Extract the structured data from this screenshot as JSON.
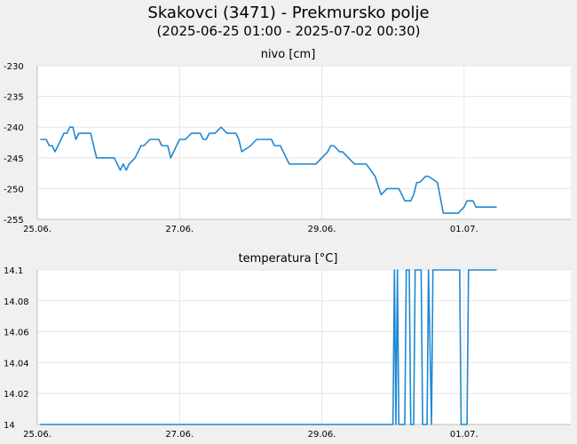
{
  "header": {
    "title": "Skakovci (3471) - Prekmursko polje",
    "subtitle": "(2025-06-25 01:00 - 2025-07-02 00:30)"
  },
  "chart_data": [
    {
      "type": "line",
      "title": "nivo [cm]",
      "ylim": [
        -255,
        -230
      ],
      "yticks": [
        -230,
        -235,
        -240,
        -245,
        -250,
        -255
      ],
      "xlim": [
        "2025-06-25 00:00",
        "2025-07-02 12:00"
      ],
      "xticks": [
        {
          "label": "25.06.",
          "at": "2025-06-25 00:00"
        },
        {
          "label": "27.06.",
          "at": "2025-06-27 00:00"
        },
        {
          "label": "29.06.",
          "at": "2025-06-29 00:00"
        },
        {
          "label": "01.07.",
          "at": "2025-07-01 00:00"
        }
      ],
      "grid": true,
      "color": "#1e88d4",
      "series": [
        {
          "x": [
            "2025-06-25 01:00",
            "2025-06-25 03:00",
            "2025-06-25 04:00",
            "2025-06-25 05:00",
            "2025-06-25 06:00",
            "2025-06-25 07:00",
            "2025-06-25 09:00",
            "2025-06-25 10:00",
            "2025-06-25 11:00",
            "2025-06-25 12:00",
            "2025-06-25 13:00",
            "2025-06-25 14:00",
            "2025-06-25 15:00",
            "2025-06-25 17:00",
            "2025-06-25 18:00",
            "2025-06-25 20:00",
            "2025-06-25 21:00",
            "2025-06-26 00:00",
            "2025-06-26 02:00",
            "2025-06-26 03:00",
            "2025-06-26 04:00",
            "2025-06-26 05:00",
            "2025-06-26 06:00",
            "2025-06-26 07:00",
            "2025-06-26 09:00",
            "2025-06-26 11:00",
            "2025-06-26 12:00",
            "2025-06-26 14:00",
            "2025-06-26 15:00",
            "2025-06-26 17:00",
            "2025-06-26 18:00",
            "2025-06-26 19:00",
            "2025-06-26 20:00",
            "2025-06-26 21:00",
            "2025-06-27 00:00",
            "2025-06-27 02:00",
            "2025-06-27 04:00",
            "2025-06-27 05:00",
            "2025-06-27 06:00",
            "2025-06-27 07:00",
            "2025-06-27 08:00",
            "2025-06-27 09:00",
            "2025-06-27 10:00",
            "2025-06-27 12:00",
            "2025-06-27 14:00",
            "2025-06-27 16:00",
            "2025-06-27 19:00",
            "2025-06-27 20:00",
            "2025-06-27 21:00",
            "2025-06-28 00:00",
            "2025-06-28 02:00",
            "2025-06-28 04:00",
            "2025-06-28 06:00",
            "2025-06-28 07:00",
            "2025-06-28 08:00",
            "2025-06-28 09:00",
            "2025-06-28 10:00",
            "2025-06-28 12:00",
            "2025-06-28 13:00",
            "2025-06-28 16:00",
            "2025-06-28 18:00",
            "2025-06-28 19:00",
            "2025-06-28 22:00",
            "2025-06-29 00:00",
            "2025-06-29 02:00",
            "2025-06-29 03:00",
            "2025-06-29 04:00",
            "2025-06-29 06:00",
            "2025-06-29 07:00",
            "2025-06-29 09:00",
            "2025-06-29 11:00",
            "2025-06-29 13:00",
            "2025-06-29 15:00",
            "2025-06-29 18:00",
            "2025-06-29 20:00",
            "2025-06-29 22:00",
            "2025-06-30 00:00",
            "2025-06-30 02:00",
            "2025-06-30 04:00",
            "2025-06-30 06:00",
            "2025-06-30 07:00",
            "2025-06-30 08:00",
            "2025-06-30 09:00",
            "2025-06-30 11:00",
            "2025-06-30 12:00",
            "2025-06-30 15:00",
            "2025-06-30 17:00",
            "2025-06-30 20:00",
            "2025-06-30 22:00",
            "2025-07-01 00:00",
            "2025-07-01 01:00",
            "2025-07-01 03:00",
            "2025-07-01 04:00",
            "2025-07-01 06:00",
            "2025-07-01 08:00",
            "2025-07-01 11:00"
          ],
          "values": [
            -242,
            -242,
            -243,
            -243,
            -244,
            -243,
            -241,
            -241,
            -240,
            -240,
            -242,
            -241,
            -241,
            -241,
            -241,
            -245,
            -245,
            -245,
            -245,
            -246,
            -247,
            -246,
            -247,
            -246,
            -245,
            -243,
            -243,
            -242,
            -242,
            -242,
            -243,
            -243,
            -243,
            -245,
            -242,
            -242,
            -241,
            -241,
            -241,
            -241,
            -242,
            -242,
            -241,
            -241,
            -240,
            -241,
            -241,
            -242,
            -244,
            -243,
            -242,
            -242,
            -242,
            -242,
            -243,
            -243,
            -243,
            -245,
            -246,
            -246,
            -246,
            -246,
            -246,
            -245,
            -244,
            -243,
            -243,
            -244,
            -244,
            -245,
            -246,
            -246,
            -246,
            -248,
            -251,
            -250,
            -250,
            -250,
            -252,
            -252,
            -251,
            -249,
            -249,
            -248,
            -248,
            -249,
            -254,
            -254,
            -254,
            -253,
            -252,
            -252,
            -253,
            -253,
            -253,
            -253
          ]
        }
      ]
    },
    {
      "type": "line",
      "title": "temperatura [°C]",
      "ylim": [
        14,
        14.1
      ],
      "yticks": [
        14.1,
        14.08,
        14.06,
        14.04,
        14.02,
        14
      ],
      "xlim": [
        "2025-06-25 00:00",
        "2025-07-02 12:00"
      ],
      "xticks": [
        {
          "label": "25.06.",
          "at": "2025-06-25 00:00"
        },
        {
          "label": "27.06.",
          "at": "2025-06-27 00:00"
        },
        {
          "label": "29.06.",
          "at": "2025-06-29 00:00"
        },
        {
          "label": "01.07.",
          "at": "2025-07-01 00:00"
        }
      ],
      "grid": true,
      "color": "#1e88d4",
      "series": [
        {
          "x": [
            "2025-06-25 01:00",
            "2025-06-30 00:00",
            "2025-06-30 00:30",
            "2025-06-30 01:00",
            "2025-06-30 01:30",
            "2025-06-30 02:00",
            "2025-06-30 04:00",
            "2025-06-30 04:30",
            "2025-06-30 05:30",
            "2025-06-30 06:00",
            "2025-06-30 07:00",
            "2025-06-30 07:30",
            "2025-06-30 09:30",
            "2025-06-30 10:00",
            "2025-06-30 11:30",
            "2025-06-30 12:00",
            "2025-06-30 13:00",
            "2025-06-30 13:30",
            "2025-06-30 14:00",
            "2025-06-30 14:30",
            "2025-06-30 16:00",
            "2025-06-30 16:30",
            "2025-06-30 22:30",
            "2025-06-30 23:00",
            "2025-07-01 01:00",
            "2025-07-01 01:30",
            "2025-07-01 11:00"
          ],
          "values": [
            14.0,
            14.0,
            14.1,
            14.0,
            14.1,
            14.0,
            14.0,
            14.1,
            14.1,
            14.0,
            14.0,
            14.1,
            14.1,
            14.0,
            14.0,
            14.1,
            14.0,
            14.1,
            14.1,
            14.1,
            14.1,
            14.1,
            14.1,
            14.0,
            14.0,
            14.1,
            14.1
          ]
        }
      ]
    }
  ]
}
